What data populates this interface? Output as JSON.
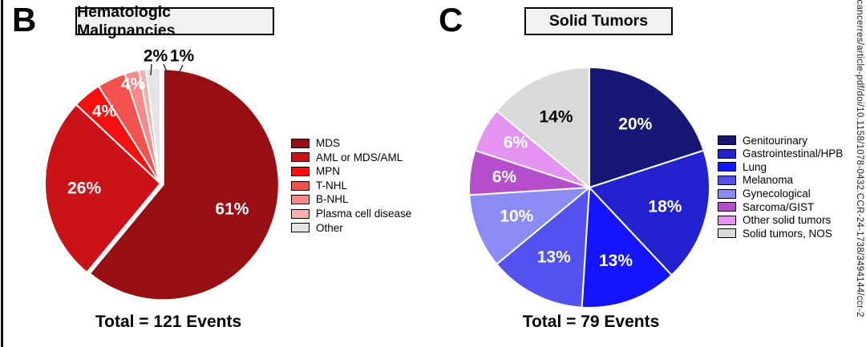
{
  "figure": {
    "side_text": "incancerres/article-pdf/doi/10.1158/1078-0432.CCR-24-1738/3494144/ccr-2",
    "panels": [
      {
        "letter": "B",
        "title": "Hematologic Malignancies",
        "total": "Total = 121 Events"
      },
      {
        "letter": "C",
        "title": "Solid Tumors",
        "total": "Total = 79 Events"
      }
    ]
  },
  "chart_data": [
    {
      "type": "pie",
      "title": "Hematologic Malignancies",
      "total_events": 121,
      "total_label": "Total = 121 Events",
      "legend_position": "right",
      "slices": [
        {
          "label": "MDS",
          "value": 61,
          "pct_label": "61%",
          "color": "#970f13",
          "text_color": "#ffffff"
        },
        {
          "label": "AML or MDS/AML",
          "value": 26,
          "pct_label": "26%",
          "color": "#cb1219",
          "text_color": "#ffffff"
        },
        {
          "label": "MPN",
          "value": 4,
          "pct_label": "4%",
          "color": "#f80f10",
          "text_color": "#ffffff",
          "label_xy": [
            110,
            90
          ]
        },
        {
          "label": "T-NHL",
          "value": 4,
          "pct_label": "4%",
          "color": "#f4524e",
          "text_color": "#ffffff",
          "label_xy": [
            146,
            56
          ]
        },
        {
          "label": "B-NHL",
          "value": 2,
          "pct_label": "2%",
          "color": "#f68a88",
          "text_color": "#000000",
          "label_xy": [
            174,
            21
          ],
          "outside": true
        },
        {
          "label": "Plasma cell disease",
          "value": 1,
          "pct_label": "1%",
          "color": "#f8b0ae",
          "text_color": "#000000",
          "label_xy": [
            207,
            21
          ],
          "outside": true
        },
        {
          "label": "Other",
          "value": 2,
          "pct_label": "",
          "color": "#e4e4e4",
          "text_color": "#000000"
        }
      ],
      "layout": {
        "center": [
          180,
          180
        ],
        "radius": 144,
        "label_frac": 0.66,
        "explode": {
          "0": 4
        },
        "ticks": [
          [
            169,
            31,
            168,
            45
          ],
          [
            184,
            31,
            190,
            45
          ],
          [
            208,
            32,
            201,
            46
          ]
        ]
      }
    },
    {
      "type": "pie",
      "title": "Solid Tumors",
      "total_events": 79,
      "total_label": "Total = 79 Events",
      "legend_position": "right",
      "slices": [
        {
          "label": "Genitourinary",
          "value": 20,
          "pct_label": "20%",
          "color": "#171775",
          "text_color": "#ffffff"
        },
        {
          "label": "Gastrointestinal/HPB",
          "value": 18,
          "pct_label": "18%",
          "color": "#2222cf",
          "text_color": "#ffffff"
        },
        {
          "label": "Lung",
          "value": 13,
          "pct_label": "13%",
          "color": "#1414ff",
          "text_color": "#ffffff"
        },
        {
          "label": "Melanoma",
          "value": 13,
          "pct_label": "13%",
          "color": "#5352ef",
          "text_color": "#ffffff"
        },
        {
          "label": "Gynecological",
          "value": 10,
          "pct_label": "10%",
          "color": "#8b8bf4",
          "text_color": "#ffffff"
        },
        {
          "label": "Sarcoma/GIST",
          "value": 6,
          "pct_label": "6%",
          "color": "#b44ecb",
          "text_color": "#ffffff",
          "label_xy": [
            74,
            167
          ]
        },
        {
          "label": "Other solid tumors",
          "value": 6,
          "pct_label": "6%",
          "color": "#e494f0",
          "text_color": "#ffffff",
          "label_xy": [
            88,
            124
          ]
        },
        {
          "label": "Solid tumors, NOS",
          "value": 14,
          "pct_label": "14%",
          "color": "#d9d9d9",
          "text_color": "#000000"
        }
      ],
      "layout": {
        "center": [
          180,
          180
        ],
        "radius": 150,
        "label_frac": 0.65,
        "explode": {},
        "ticks": []
      }
    }
  ]
}
